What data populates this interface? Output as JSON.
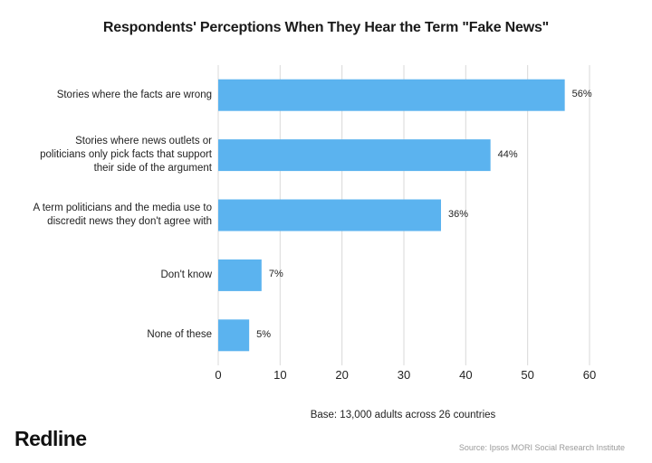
{
  "chart_data": {
    "type": "bar",
    "orientation": "horizontal",
    "title": "Respondents' Perceptions When They Hear the Term \"Fake News\"",
    "categories": [
      "Stories where the facts are wrong",
      "Stories where news outlets or politicians only pick facts that support their side of the argument",
      "A term politicians and the media use to discredit news they don't agree with",
      "Don't know",
      "None of these"
    ],
    "category_lines": [
      [
        "Stories where the facts are wrong"
      ],
      [
        "Stories where news outlets or",
        "politicians only pick facts that support",
        "their side of the argument"
      ],
      [
        "A term politicians and the media use to",
        "discredit news they don't agree with"
      ],
      [
        "Don't know"
      ],
      [
        "None of these"
      ]
    ],
    "values": [
      56,
      44,
      36,
      7,
      5
    ],
    "value_labels": [
      "56%",
      "44%",
      "36%",
      "7%",
      "5%"
    ],
    "xlim": [
      0,
      60
    ],
    "xticks": [
      "0",
      "10",
      "20",
      "30",
      "40",
      "50",
      "60"
    ],
    "grid": true,
    "bar_color": "#5bb3ef",
    "grid_color": "#d9d9d9"
  },
  "footer": {
    "base_note": "Base: 13,000 adults across 26 countries",
    "brand": "Redline",
    "source": "Source: Ipsos MORI Social Research Institute"
  }
}
